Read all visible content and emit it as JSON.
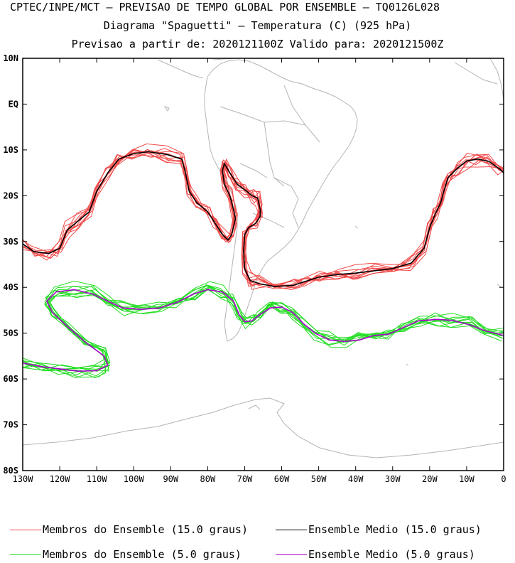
{
  "titles": {
    "line1": "CPTEC/INPE/MCT — PREVISAO DE TEMPO GLOBAL POR ENSEMBLE — TQ0126L028",
    "line2": "Diagrama \"Spaguetti\" — Temperatura (C) (925 hPa)",
    "line3": "Previsao a partir de: 2020121100Z  Valido para: 2020121500Z"
  },
  "legend": [
    {
      "label": "Membros do Ensemble (15.0 graus)",
      "color": "#f04848"
    },
    {
      "label": "Ensemble Medio (15.0 graus)",
      "color": "#000000"
    },
    {
      "label": "Membros do Ensemble (5.0 graus)",
      "color": "#22dd22"
    },
    {
      "label": "Ensemble Medio (5.0 graus)",
      "color": "#aa00cc"
    }
  ],
  "chart_data": {
    "type": "line",
    "xlim": [
      -130,
      0
    ],
    "ylim": [
      -80,
      10
    ],
    "x_ticks": [
      {
        "v": -130,
        "label": "130W"
      },
      {
        "v": -120,
        "label": "120W"
      },
      {
        "v": -110,
        "label": "110W"
      },
      {
        "v": -100,
        "label": "100W"
      },
      {
        "v": -90,
        "label": "90W"
      },
      {
        "v": -80,
        "label": "80W"
      },
      {
        "v": -70,
        "label": "70W"
      },
      {
        "v": -60,
        "label": "60W"
      },
      {
        "v": -50,
        "label": "50W"
      },
      {
        "v": -40,
        "label": "40W"
      },
      {
        "v": -30,
        "label": "30W"
      },
      {
        "v": -20,
        "label": "20W"
      },
      {
        "v": -10,
        "label": "10W"
      },
      {
        "v": 0,
        "label": "0"
      }
    ],
    "y_ticks": [
      {
        "v": 10,
        "label": "10N"
      },
      {
        "v": 0,
        "label": "EQ"
      },
      {
        "v": -10,
        "label": "10S"
      },
      {
        "v": -20,
        "label": "20S"
      },
      {
        "v": -30,
        "label": "30S"
      },
      {
        "v": -40,
        "label": "40S"
      },
      {
        "v": -50,
        "label": "50S"
      },
      {
        "v": -60,
        "label": "60S"
      },
      {
        "v": -70,
        "label": "70S"
      },
      {
        "v": -80,
        "label": "80S"
      }
    ],
    "series": [
      {
        "name": "Ensemble Medio (15.0 graus)",
        "color": "#000000",
        "segments": [
          [
            [
              -130,
              -30.5
            ],
            [
              -127,
              -32.2
            ],
            [
              -123,
              -32.6
            ],
            [
              -120,
              -31.5
            ],
            [
              -118,
              -27.5
            ],
            [
              -115,
              -25.5
            ],
            [
              -112,
              -23.5
            ],
            [
              -110,
              -19
            ],
            [
              -107,
              -15
            ],
            [
              -104,
              -12
            ],
            [
              -100,
              -10.8
            ],
            [
              -96,
              -10.4
            ],
            [
              -91,
              -11
            ],
            [
              -87,
              -12
            ],
            [
              -86,
              -15
            ],
            [
              -85,
              -19
            ],
            [
              -83,
              -21.5
            ],
            [
              -80,
              -23.5
            ],
            [
              -78,
              -26
            ],
            [
              -76,
              -28.5
            ],
            [
              -74.5,
              -29.7
            ],
            [
              -73.5,
              -28.5
            ],
            [
              -72.5,
              -25
            ],
            [
              -73,
              -23
            ],
            [
              -74,
              -20
            ],
            [
              -75.5,
              -17.5
            ],
            [
              -76,
              -14.5
            ],
            [
              -75.5,
              -13
            ],
            [
              -74,
              -15
            ],
            [
              -72,
              -17.5
            ],
            [
              -69.5,
              -19
            ],
            [
              -68,
              -20
            ],
            [
              -66.5,
              -20.5
            ],
            [
              -65.8,
              -23
            ],
            [
              -65.8,
              -24.5
            ],
            [
              -67,
              -26
            ],
            [
              -69,
              -27
            ],
            [
              -70,
              -28.5
            ],
            [
              -70.3,
              -32
            ],
            [
              -70,
              -36
            ],
            [
              -68.5,
              -38.5
            ],
            [
              -66,
              -39.2
            ],
            [
              -62,
              -39.8
            ],
            [
              -57,
              -39.6
            ],
            [
              -54,
              -38.8
            ],
            [
              -50,
              -37.8
            ],
            [
              -45,
              -37.2
            ],
            [
              -40,
              -36.9
            ],
            [
              -35,
              -36.4
            ],
            [
              -30,
              -35.9
            ],
            [
              -25,
              -34.7
            ],
            [
              -21.5,
              -31.5
            ],
            [
              -20,
              -27
            ],
            [
              -18.5,
              -24
            ],
            [
              -17,
              -21.5
            ],
            [
              -16,
              -18.5
            ],
            [
              -15,
              -16
            ],
            [
              -12.5,
              -14
            ],
            [
              -10,
              -12.4
            ],
            [
              -7,
              -12
            ],
            [
              -4,
              -12.5
            ],
            [
              -1,
              -14.2
            ],
            [
              0,
              -15
            ]
          ]
        ]
      },
      {
        "name": "Ensemble Medio (5.0 graus)",
        "color": "#aa00cc",
        "segments": [
          [
            [
              -130,
              -56.5
            ],
            [
              -125,
              -57.3
            ],
            [
              -120,
              -57.8
            ],
            [
              -115,
              -58.3
            ],
            [
              -110,
              -58.2
            ],
            [
              -107,
              -57
            ],
            [
              -108,
              -55
            ],
            [
              -113,
              -52
            ],
            [
              -118,
              -48.5
            ],
            [
              -122,
              -45.5
            ],
            [
              -123.5,
              -43
            ],
            [
              -121,
              -41
            ],
            [
              -116,
              -40.5
            ],
            [
              -111,
              -41.5
            ],
            [
              -107,
              -43
            ],
            [
              -103,
              -44.5
            ],
            [
              -98,
              -44.8
            ],
            [
              -93,
              -44.5
            ],
            [
              -88,
              -43.2
            ],
            [
              -84,
              -41.5
            ],
            [
              -80,
              -40.5
            ],
            [
              -76,
              -41
            ],
            [
              -73,
              -43
            ],
            [
              -71.5,
              -46
            ],
            [
              -70,
              -47.5
            ],
            [
              -68,
              -47.3
            ],
            [
              -66,
              -46
            ],
            [
              -63,
              -44.5
            ],
            [
              -60,
              -44.3
            ],
            [
              -57,
              -45.5
            ],
            [
              -54,
              -48
            ],
            [
              -51,
              -50
            ],
            [
              -47,
              -51.5
            ],
            [
              -43,
              -51.8
            ],
            [
              -39,
              -51.5
            ],
            [
              -35,
              -50.5
            ],
            [
              -31,
              -50.2
            ],
            [
              -27,
              -48.7
            ],
            [
              -23,
              -47.3
            ],
            [
              -18,
              -47
            ],
            [
              -14,
              -47.2
            ],
            [
              -9,
              -48.2
            ],
            [
              -5,
              -49.5
            ],
            [
              0,
              -50.5
            ]
          ]
        ]
      }
    ],
    "member_groups": [
      {
        "name": "Membros do Ensemble (15.0 graus)",
        "color": "#f04848",
        "of": "Ensemble Medio (15.0 graus)",
        "count": 10
      },
      {
        "name": "Membros do Ensemble (5.0 graus)",
        "color": "#22dd22",
        "of": "Ensemble Medio (5.0 graus)",
        "count": 10
      }
    ]
  }
}
